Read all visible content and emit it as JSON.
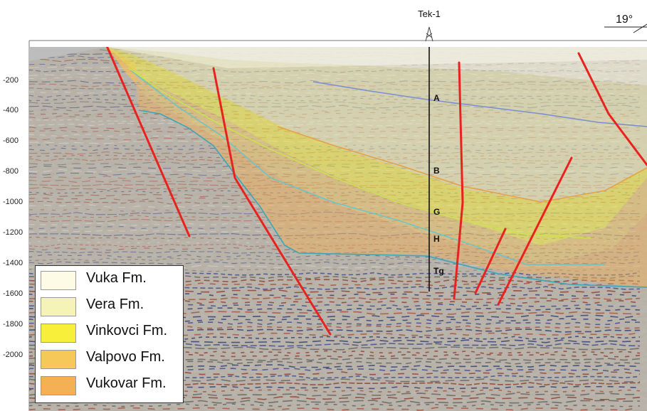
{
  "well": {
    "name": "Tek-1"
  },
  "dip": {
    "label": "19°"
  },
  "depth_axis": {
    "ticks": [
      "-200",
      "-400",
      "-600",
      "-800",
      "-1000",
      "-1200",
      "-1400",
      "-1600",
      "-1800",
      "-2000"
    ]
  },
  "horizons": [
    {
      "name": "A",
      "color": "#7b8fd0"
    },
    {
      "name": "B",
      "color": "#e5a240"
    },
    {
      "name": "G",
      "color": "#c8e64a"
    },
    {
      "name": "H",
      "color": "#5fc7d0"
    },
    {
      "name": "Tg",
      "color": "#3aa6b8"
    }
  ],
  "legend": {
    "items": [
      {
        "label": "Vuka Fm.",
        "color": "#fdfbe6"
      },
      {
        "label": "Vera Fm.",
        "color": "#f6f3b6"
      },
      {
        "label": "Vinkovci Fm.",
        "color": "#f7ef3a"
      },
      {
        "label": "Valpovo Fm.",
        "color": "#f6c85a"
      },
      {
        "label": "Vukovar Fm.",
        "color": "#f3b055"
      }
    ]
  },
  "faults": {
    "color": "#e8231f"
  }
}
